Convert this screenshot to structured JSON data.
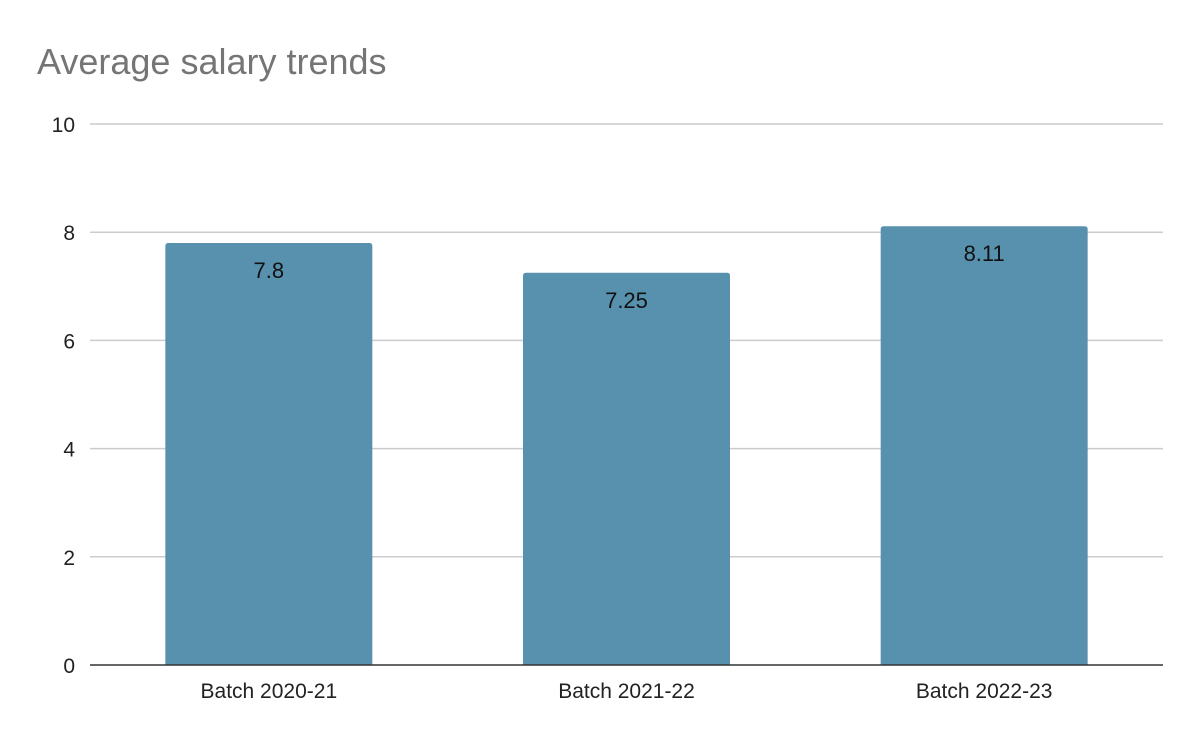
{
  "chart_data": {
    "type": "bar",
    "title": "Average salary trends",
    "xlabel": "",
    "ylabel": "",
    "categories": [
      "Batch 2020-21",
      "Batch 2021-22",
      "Batch 2022-23"
    ],
    "values": [
      7.8,
      7.25,
      8.11
    ],
    "value_labels": [
      "7.8",
      "7.25",
      "8.11"
    ],
    "ylim": [
      0,
      10
    ],
    "yticks": [
      0,
      2,
      4,
      6,
      8,
      10
    ],
    "ytick_labels": [
      "0",
      "2",
      "4",
      "6",
      "8",
      "10"
    ],
    "grid": true,
    "legend": "none",
    "bar_color": "#5891ae"
  }
}
